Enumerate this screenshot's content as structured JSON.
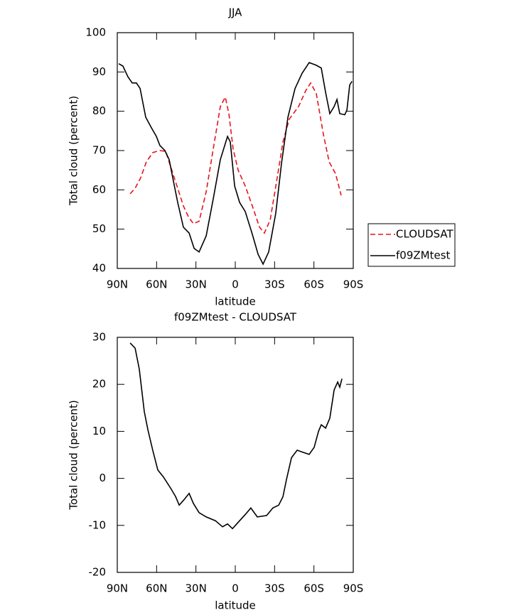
{
  "chart_data": [
    {
      "type": "line",
      "title": "JJA",
      "xlabel": "latitude",
      "ylabel": "Total cloud (percent)",
      "xlim": [
        90,
        -90
      ],
      "xticks": [
        {
          "value": 90,
          "label": "90N"
        },
        {
          "value": 60,
          "label": "60N"
        },
        {
          "value": 30,
          "label": "30N"
        },
        0,
        {
          "value": -30,
          "label": "30S"
        },
        {
          "value": -60,
          "label": "60S"
        },
        {
          "value": -90,
          "label": "90S"
        }
      ],
      "ylim": [
        40,
        100
      ],
      "yticks": [
        40,
        50,
        60,
        70,
        80,
        90,
        100
      ],
      "legend": "right",
      "series": [
        {
          "name": "CLOUDSAT",
          "color": "#e8141c",
          "linestyle": "dashed",
          "x": [
            80.2,
            76.4,
            72.1,
            67.8,
            62.9,
            57.5,
            53.1,
            49.3,
            43.9,
            39.6,
            35.8,
            32.0,
            27.6,
            22.2,
            16.8,
            11.4,
            7.6,
            4.9,
            1.6,
            -2.2,
            -7.6,
            -13.0,
            -18.5,
            -22.2,
            -26.6,
            -32.0,
            -36.4,
            -41.2,
            -48.3,
            -53.7,
            -57.5,
            -61.8,
            -67.3,
            -71.6,
            -76.5,
            -80.8
          ],
          "values": [
            59.0,
            60.4,
            63.1,
            67.1,
            69.5,
            70.0,
            69.8,
            65.9,
            60.4,
            55.9,
            53.2,
            51.4,
            52.0,
            59.5,
            70.4,
            81.2,
            83.6,
            79.4,
            70.4,
            65.0,
            61.0,
            55.9,
            50.5,
            49.0,
            52.3,
            63.1,
            72.2,
            78.0,
            81.2,
            85.2,
            87.2,
            84.5,
            74.0,
            67.1,
            64.1,
            58.6
          ]
        },
        {
          "name": "f09ZMtest",
          "color": "#000000",
          "linestyle": "solid",
          "x": [
            88.9,
            85.7,
            81.9,
            78.6,
            75.4,
            72.6,
            68.3,
            64.0,
            60.2,
            57.5,
            53.7,
            50.4,
            46.6,
            43.9,
            39.6,
            35.2,
            31.4,
            27.6,
            22.2,
            16.8,
            11.4,
            5.9,
            3.8,
            0.5,
            -3.3,
            -7.6,
            -13.0,
            -17.4,
            -21.2,
            -25.5,
            -30.9,
            -35.3,
            -40.2,
            -45.6,
            -51.0,
            -56.4,
            -61.8,
            -65.6,
            -68.9,
            -72.1,
            -75.4,
            -77.6,
            -79.7,
            -83.5,
            -85.2,
            -87.3,
            -89.0
          ],
          "values": [
            92.1,
            91.5,
            88.8,
            87.2,
            87.2,
            85.8,
            78.5,
            75.8,
            73.6,
            71.3,
            70.0,
            67.7,
            61.3,
            56.8,
            50.5,
            49.0,
            45.1,
            44.2,
            48.3,
            57.7,
            67.7,
            73.6,
            72.2,
            61.0,
            56.8,
            54.5,
            48.7,
            43.6,
            41.1,
            44.2,
            54.1,
            66.8,
            78.5,
            85.8,
            89.7,
            92.4,
            91.7,
            91.0,
            84.8,
            79.4,
            81.2,
            83.0,
            79.4,
            79.1,
            80.3,
            86.7,
            87.6
          ]
        }
      ]
    },
    {
      "type": "line",
      "title": "f09ZMtest - CLOUDSAT",
      "xlabel": "latitude",
      "ylabel": "Total cloud (percent)",
      "xlim": [
        90,
        -90
      ],
      "xticks": [
        {
          "value": 90,
          "label": "90N"
        },
        {
          "value": 60,
          "label": "60N"
        },
        {
          "value": 30,
          "label": "30N"
        },
        0,
        {
          "value": -30,
          "label": "30S"
        },
        {
          "value": -60,
          "label": "60S"
        },
        {
          "value": -90,
          "label": "90S"
        }
      ],
      "ylim": [
        -20,
        30
      ],
      "yticks": [
        -20,
        -10,
        0,
        10,
        20,
        30
      ],
      "series": [
        {
          "color": "#000000",
          "linestyle": "solid",
          "x": [
            80.2,
            76.4,
            73.2,
            69.4,
            66.7,
            62.9,
            59.1,
            54.8,
            49.3,
            45.5,
            42.8,
            39.6,
            35.2,
            32.0,
            27.6,
            22.2,
            15.2,
            9.7,
            5.9,
            2.1,
            -1.1,
            -7.6,
            -11.9,
            -16.8,
            -23.9,
            -28.7,
            -33.1,
            -36.4,
            -39.1,
            -42.9,
            -47.2,
            -51.0,
            -56.4,
            -60.2,
            -63.5,
            -65.6,
            -68.9,
            -72.1,
            -75.4,
            -78.1,
            -79.7,
            -81.4
          ],
          "values": [
            28.8,
            27.7,
            23.2,
            14.2,
            10.4,
            5.9,
            1.8,
            0.3,
            -2.1,
            -3.9,
            -5.7,
            -4.7,
            -3.2,
            -5.3,
            -7.3,
            -8.2,
            -9.0,
            -10.3,
            -9.7,
            -10.7,
            -9.7,
            -7.7,
            -6.3,
            -8.2,
            -7.9,
            -6.3,
            -5.7,
            -3.9,
            -0.2,
            4.4,
            6.0,
            5.6,
            5.1,
            6.6,
            10.0,
            11.4,
            10.7,
            12.8,
            18.8,
            20.5,
            19.4,
            21.2
          ]
        }
      ]
    }
  ]
}
